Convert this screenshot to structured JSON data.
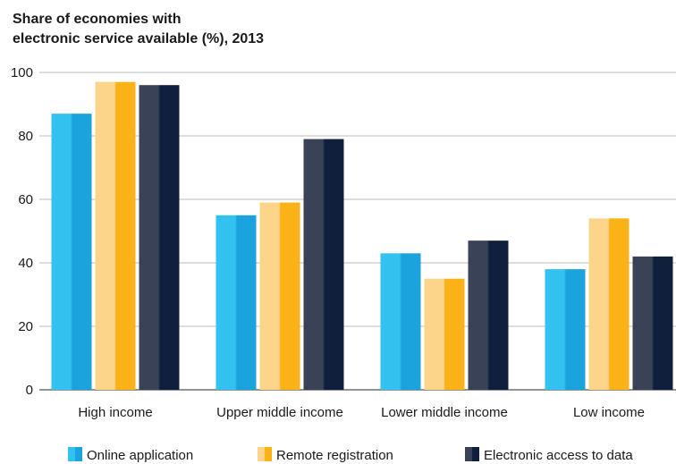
{
  "chart_data": {
    "type": "bar",
    "title_lines": [
      "Share of economies with",
      "electronic service available (%), 2013"
    ],
    "xlabel": "",
    "ylabel": "",
    "categories": [
      "High income",
      "Upper middle income",
      "Lower middle income",
      "Low income"
    ],
    "series": [
      {
        "name": "Online application",
        "values": [
          87,
          55,
          43,
          38
        ],
        "color": "#1aa3dc",
        "color_light": "#33c1f0"
      },
      {
        "name": "Remote registration",
        "values": [
          97,
          59,
          35,
          54
        ],
        "color": "#fbb217",
        "color_light": "#fdd58a"
      },
      {
        "name": "Electronic access to data",
        "values": [
          96,
          79,
          47,
          42
        ],
        "color": "#101f3c",
        "color_light": "#3a4257"
      }
    ],
    "ylim": [
      0,
      100
    ],
    "yticks": [
      0,
      20,
      40,
      60,
      80,
      100
    ],
    "grid": true,
    "legend_position": "bottom"
  }
}
